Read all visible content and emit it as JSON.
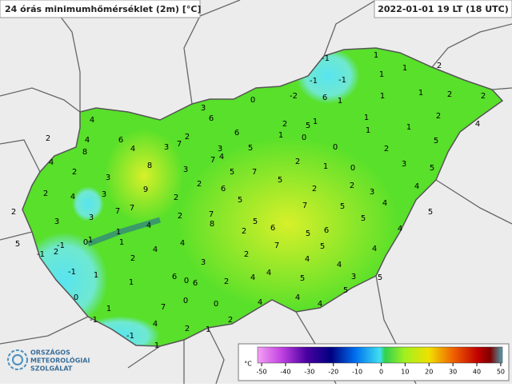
{
  "header": {
    "title": "24 órás minimumhőmérséklet (2m) [°C]",
    "time": "2022-01-01 19 LT (18 UTC)"
  },
  "stations": [
    -1,
    1,
    2,
    -1,
    -1,
    1,
    1,
    0,
    -2,
    6,
    1,
    1,
    1,
    2,
    2,
    3,
    6,
    4,
    2,
    5,
    1,
    1,
    2,
    4,
    2,
    4,
    6,
    2,
    6,
    1,
    0,
    1,
    1,
    8,
    4,
    3,
    7,
    3,
    5,
    0,
    2,
    5,
    4,
    7,
    4,
    5,
    2,
    1,
    0,
    3,
    5,
    2,
    3,
    8,
    3,
    7,
    2,
    4,
    3,
    9,
    2,
    5,
    2,
    2,
    3,
    4,
    2,
    3,
    3,
    7,
    7,
    2,
    6,
    5,
    7,
    5,
    4,
    1,
    1,
    4,
    2,
    7,
    8,
    5,
    6,
    5,
    6,
    5,
    4,
    5,
    5,
    0,
    -1,
    -1,
    2,
    1,
    4,
    4,
    2,
    7,
    5,
    4,
    4,
    1,
    2,
    3,
    2,
    4,
    -1,
    6,
    1,
    0,
    6,
    2,
    4,
    4,
    5,
    3,
    5,
    0,
    1,
    7,
    0,
    0,
    4,
    4,
    5,
    4,
    -1,
    4,
    2,
    1,
    2,
    -1,
    1
  ],
  "colorbar": {
    "unit": "°C",
    "ticks": [
      -50,
      -40,
      -30,
      -20,
      -10,
      0,
      10,
      20,
      30,
      40,
      50
    ],
    "range": [
      -51.7,
      50.7
    ]
  },
  "logo": {
    "line1": "ORSZÁGOS",
    "line2": "METEOROLÓGIAI",
    "line3": "SZOLGÁLAT"
  }
}
